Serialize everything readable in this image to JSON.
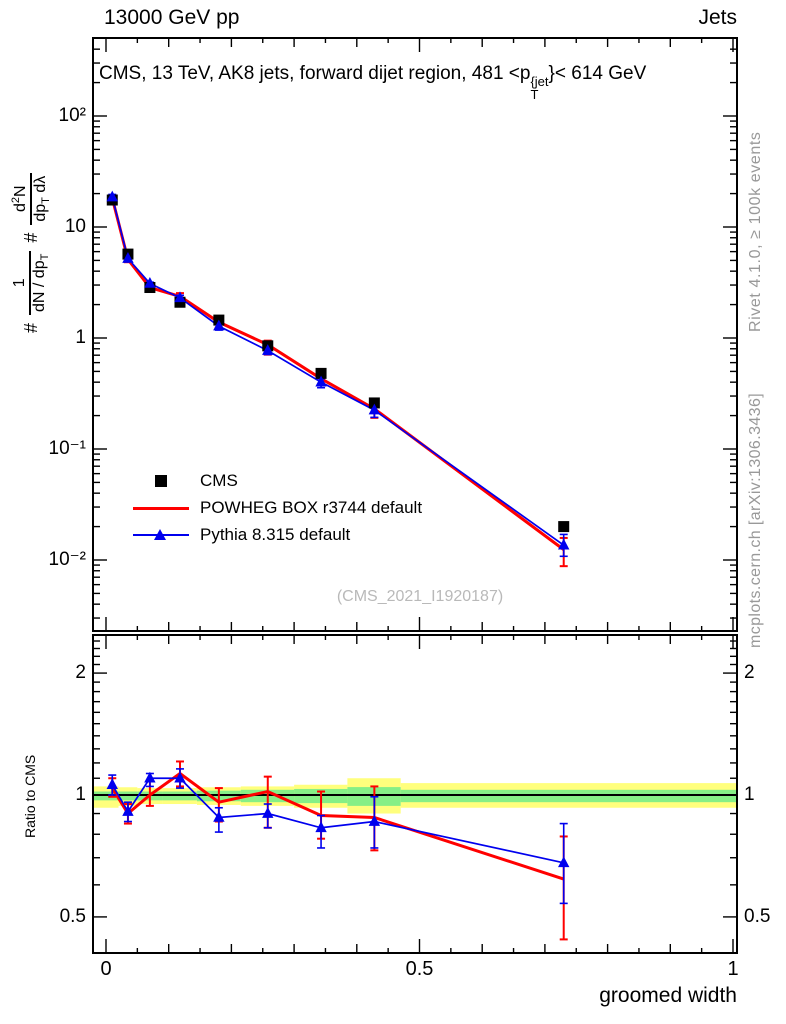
{
  "header": {
    "left": "13000 GeV pp",
    "right": "Jets"
  },
  "title": {
    "a": "CMS, 13 TeV, AK8 jets, forward dijet region, 481 <p",
    "sup": "{jet",
    "sub": "T",
    "b": "}< 614 GeV"
  },
  "ylabel_main": {
    "h1": "#",
    "f1_num": "1",
    "f1_den_a": "dN / dp",
    "f1_den_sub": "T",
    "h2": "#",
    "f2_num_a": "d",
    "f2_num_sup": "2",
    "f2_num_b": "N",
    "f2_den_a": "dp",
    "f2_den_sub": "T",
    "f2_den_b": " dλ"
  },
  "side_notes": {
    "top": "Rivet 4.1.0, ≥ 100k events",
    "bottom": "mcplots.cern.ch [arXiv:1306.3436]"
  },
  "watermark": "(CMS_2021_I1920187)",
  "legend": {
    "items": [
      {
        "label": "CMS"
      },
      {
        "label": "POWHEG BOX r3744 default"
      },
      {
        "label": "Pythia 8.315 default"
      }
    ]
  },
  "axes": {
    "xlabel": "groomed width",
    "ratio_ylabel": "Ratio to CMS",
    "x_ticks": [
      {
        "v": 0,
        "label": "0"
      },
      {
        "v": 0.5,
        "label": "0.5"
      },
      {
        "v": 1,
        "label": "1"
      }
    ],
    "main_y_ticks": [
      {
        "v": 100,
        "label": "10²"
      },
      {
        "v": 10,
        "label": "10"
      },
      {
        "v": 1,
        "label": "1"
      },
      {
        "v": 0.1,
        "label": "10⁻¹"
      },
      {
        "v": 0.01,
        "label": "10⁻²"
      }
    ],
    "ratio_y_ticks": [
      {
        "v": 2,
        "label": "2"
      },
      {
        "v": 1,
        "label": "1"
      },
      {
        "v": 0.5,
        "label": "0.5"
      }
    ]
  },
  "colors": {
    "cms": "#000000",
    "powheg": "#ff0000",
    "pythia": "#0000ee",
    "band_yellow": "#ffff7d",
    "band_green": "#86ef86",
    "gray_text": "#999999",
    "watermark": "#b9b9b9"
  },
  "chart_data": [
    {
      "type": "line",
      "title": "CMS, 13 TeV, AK8 jets, forward dijet region, 481 < pT{jet} < 614 GeV",
      "xlabel": "groomed width",
      "ylabel": "# 1/(dN/dpT) # d²N/(dpT dλ)",
      "ylog": true,
      "xlim": [
        -0.02,
        1.006
      ],
      "ylim": [
        0.0023,
        500
      ],
      "legend_position": "left-middle",
      "x": [
        0.01,
        0.035,
        0.07,
        0.118,
        0.18,
        0.258,
        0.343,
        0.428,
        0.73
      ],
      "series": [
        {
          "name": "CMS",
          "marker": "square",
          "color": "#000000",
          "values": [
            17.5,
            5.7,
            2.85,
            2.1,
            1.45,
            0.85,
            0.48,
            0.26,
            0.02
          ]
        },
        {
          "name": "POWHEG BOX r3744 default",
          "marker": "none",
          "color": "#ff0000",
          "values": [
            18.2,
            5.1,
            2.85,
            2.37,
            1.39,
            0.87,
            0.43,
            0.23,
            0.0124
          ]
        },
        {
          "name": "Pythia 8.315 default",
          "marker": "triangle",
          "color": "#0000ee",
          "values": [
            18.6,
            5.2,
            3.1,
            2.3,
            1.28,
            0.77,
            0.4,
            0.224,
            0.0136
          ]
        }
      ]
    },
    {
      "type": "line",
      "title": "Ratio to CMS",
      "ylog": true,
      "ylim": [
        0.407,
        2.48
      ],
      "reference_line": 1,
      "x": [
        0.01,
        0.035,
        0.07,
        0.118,
        0.18,
        0.258,
        0.343,
        0.428,
        0.73
      ],
      "series": [
        {
          "name": "POWHEG BOX r3744 default",
          "color": "#ff0000",
          "values": [
            1.04,
            0.9,
            1.0,
            1.13,
            0.96,
            1.02,
            0.89,
            0.88,
            0.62
          ],
          "err_lo": [
            0.99,
            0.85,
            0.94,
            1.05,
            0.86,
            0.83,
            0.78,
            0.73,
            0.44
          ],
          "err_hi": [
            1.1,
            0.95,
            1.08,
            1.21,
            1.04,
            1.11,
            1.02,
            1.05,
            0.79
          ]
        },
        {
          "name": "Pythia 8.315 default",
          "color": "#0000ee",
          "marker": "triangle",
          "values": [
            1.06,
            0.91,
            1.1,
            1.1,
            0.88,
            0.9,
            0.83,
            0.86,
            0.68
          ],
          "err_lo": [
            1.0,
            0.86,
            1.05,
            1.04,
            0.81,
            0.83,
            0.74,
            0.74,
            0.54
          ],
          "err_hi": [
            1.12,
            0.96,
            1.13,
            1.16,
            0.93,
            0.95,
            0.89,
            0.99,
            0.85
          ]
        }
      ],
      "bands": {
        "edges": [
          -0.02,
          0.02,
          0.05,
          0.09,
          0.145,
          0.215,
          0.3,
          0.385,
          0.47,
          1.006
        ],
        "yellow": [
          [
            0.93,
            1.05
          ],
          [
            0.94,
            1.045
          ],
          [
            0.95,
            1.04
          ],
          [
            0.95,
            1.04
          ],
          [
            0.945,
            1.045
          ],
          [
            0.94,
            1.05
          ],
          [
            0.93,
            1.06
          ],
          [
            0.9,
            1.1
          ],
          [
            0.93,
            1.07
          ]
        ],
        "green": [
          [
            0.97,
            1.02
          ],
          [
            0.97,
            1.02
          ],
          [
            0.97,
            1.02
          ],
          [
            0.97,
            1.02
          ],
          [
            0.965,
            1.025
          ],
          [
            0.96,
            1.03
          ],
          [
            0.955,
            1.035
          ],
          [
            0.94,
            1.046
          ],
          [
            0.96,
            1.03
          ]
        ]
      }
    }
  ]
}
